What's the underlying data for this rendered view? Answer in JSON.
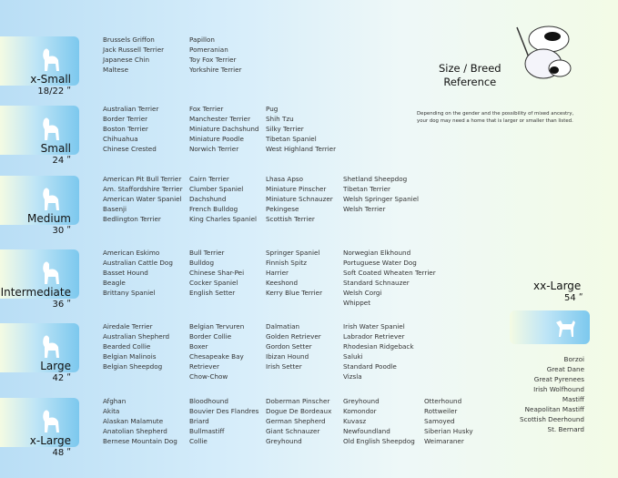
{
  "title": [
    "Size / Breed",
    "Reference"
  ],
  "note": [
    "Depending on the gender and the possibility of mixed ancestry,",
    "your dog may need  a home that is larger or smaller than listed."
  ],
  "sizes": [
    {
      "name": "x-Small",
      "height": "18/22 ʺ",
      "icon": "papillon-silhouette-icon",
      "columns": [
        [
          "Brussels Griffon",
          "Jack Russell Terrier",
          "Japanese Chin",
          "Maltese"
        ],
        [
          "Papillon",
          "Pomeranian",
          "Toy Fox Terrier",
          "Yorkshire Terrier"
        ]
      ]
    },
    {
      "name": "Small",
      "height": "24 ʺ",
      "icon": "maltese-silhouette-icon",
      "columns": [
        [
          "Australian Terrier",
          "Border Terrier",
          "Boston Terrier",
          "Chihuahua",
          "Chinese Crested"
        ],
        [
          "Fox Terrier",
          "Manchester Terrier",
          "Miniature Dachshund",
          "Miniature Poodle",
          "Norwich Terrier"
        ],
        [
          "Pug",
          "Shih Tzu",
          "Silky Terrier",
          "Tibetan Spaniel",
          "West Highland Terrier"
        ]
      ]
    },
    {
      "name": "Medium",
      "height": "30 ʺ",
      "icon": "westie-silhouette-icon",
      "columns": [
        [
          "American Pit Bull Terrier",
          "Am. Staffordshire Terrier",
          "American Water Spaniel",
          "Basenji",
          "Bedlington Terrier"
        ],
        [
          "Cairn Terrier",
          "Clumber Spaniel",
          "Dachshund",
          "French Bulldog",
          "King Charles Spaniel"
        ],
        [
          "Lhasa Apso",
          "Miniature Pinscher",
          "Miniature Schnauzer",
          "Pekingese",
          "Scottish Terrier"
        ],
        [
          "Shetland Sheepdog",
          "Tibetan Terrier",
          "Welsh Springer Spaniel",
          "Welsh Terrier"
        ]
      ]
    },
    {
      "name": "Intermediate",
      "height": "36 ʺ",
      "icon": "spaniel-silhouette-icon",
      "columns": [
        [
          "American Eskimo",
          "Australian Cattle Dog",
          "Basset Hound",
          "Beagle",
          "Brittany Spaniel"
        ],
        [
          "Bull Terrier",
          "Bulldog",
          "Chinese Shar-Pei",
          "Cocker Spaniel",
          "English Setter"
        ],
        [
          "Springer Spaniel",
          "Finnish Spitz",
          "Harrier",
          "Keeshond",
          "Kerry Blue Terrier"
        ],
        [
          "Norwegian Elkhound",
          "Portuguese Water Dog",
          "Soft Coated Wheaten Terrier",
          "Standard Schnauzer",
          "Welsh Corgi",
          "Whippet"
        ]
      ]
    },
    {
      "name": "Large",
      "height": "42 ʺ",
      "icon": "retriever-silhouette-icon",
      "columns": [
        [
          "Airedale Terrier",
          "Australian Shepherd",
          "Bearded Collie",
          "Belgian Malinois",
          "Belgian Sheepdog"
        ],
        [
          "Belgian Tervuren",
          "Border Collie",
          "Boxer",
          "Chesapeake Bay",
          "Retriever",
          "Chow-Chow"
        ],
        [
          "Dalmatian",
          "Golden Retriever",
          "Gordon Setter",
          "Ibizan Hound",
          "Irish Setter"
        ],
        [
          "Irish Water Spaniel",
          "Labrador Retriever",
          "Rhodesian Ridgeback",
          "Saluki",
          "Standard Poodle",
          "Vizsla"
        ]
      ]
    },
    {
      "name": "x-Large",
      "height": "48 ʺ",
      "icon": "akita-silhouette-icon",
      "columns": [
        [
          "Afghan",
          "Akita",
          "Alaskan Malamute",
          "Anatolian Shepherd",
          "Bernese Mountain Dog"
        ],
        [
          "Bloodhound",
          "Bouvier Des Flandres",
          "Briard",
          "Bullmastiff",
          "Collie"
        ],
        [
          "Doberman Pinscher",
          "Dogue De Bordeaux",
          "German Shepherd",
          "Giant Schnauzer",
          "Greyhound"
        ],
        [
          "Greyhound",
          "Komondor",
          "Kuvasz",
          "Newfoundland",
          "Old English Sheepdog"
        ],
        [
          "Otterhound",
          "Rottweiler",
          "Samoyed",
          "Siberian Husky",
          "Weimaraner"
        ]
      ]
    }
  ],
  "xxlarge": {
    "name": "xx-Large",
    "height": "54 ʺ",
    "icon": "great-dane-silhouette-icon",
    "breeds": [
      "Borzoi",
      "Great Dane",
      "Great Pyrenees",
      "Irish Wolfhound",
      "Mastiff",
      "Neapolitan Mastiff",
      "Scottish Deerhound",
      "St. Bernard"
    ]
  }
}
